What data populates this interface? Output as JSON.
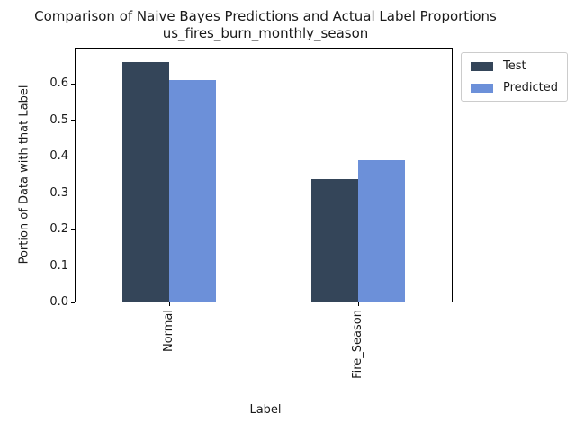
{
  "title": {
    "line1": "Comparison of Naive Bayes Predictions and Actual Label Proportions",
    "line2": "us_fires_burn_monthly_season"
  },
  "axes": {
    "xlabel": "Label",
    "ylabel": "Portion of Data with that Label"
  },
  "legend": {
    "items": [
      {
        "label": "Test",
        "color": "#344559"
      },
      {
        "label": "Predicted",
        "color": "#6c90d9"
      }
    ]
  },
  "chart_data": {
    "type": "bar",
    "title": "Comparison of Naive Bayes Predictions and Actual Label Proportions",
    "subtitle": "us_fires_burn_monthly_season",
    "categories": [
      "Normal",
      "Fire_Season"
    ],
    "series": [
      {
        "name": "Test",
        "color": "#344559",
        "values": [
          0.66,
          0.34
        ]
      },
      {
        "name": "Predicted",
        "color": "#6c90d9",
        "values": [
          0.61,
          0.39
        ]
      }
    ],
    "xlabel": "Label",
    "ylabel": "Portion of Data with that Label",
    "ylim": [
      0,
      0.7
    ],
    "yticks": [
      0.0,
      0.1,
      0.2,
      0.3,
      0.4,
      0.5,
      0.6
    ],
    "ytick_labels": [
      "0.0",
      "0.1",
      "0.2",
      "0.3",
      "0.4",
      "0.5",
      "0.6"
    ],
    "grid": false,
    "legend_position": "upper-right-outside",
    "bar_orientation": "vertical",
    "xtick_label_rotation_deg": 90
  }
}
